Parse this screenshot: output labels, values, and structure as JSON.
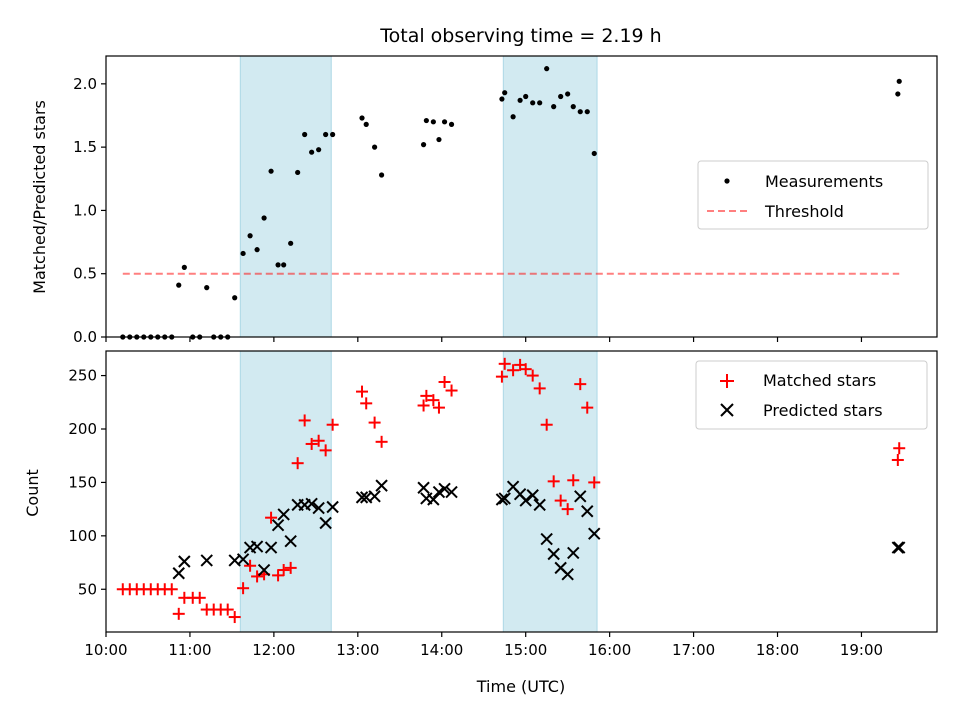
{
  "title": "Total observing time = 2.19 h",
  "colors": {
    "span": "#add8e6",
    "measurement": "#000000",
    "threshold": "#ff0000",
    "matched": "#ff0000",
    "predicted": "#000000"
  },
  "chart_data": [
    {
      "type": "scatter",
      "ylabel": "Matched/Predicted stars",
      "xlim": [
        "10:00",
        "19:54"
      ],
      "ylim": [
        0,
        2.22
      ],
      "yticks": [
        "0.0",
        "0.5",
        "1.0",
        "1.5",
        "2.0"
      ],
      "shaded_spans": [
        [
          "11:36",
          "12:41"
        ],
        [
          "14:44",
          "15:51"
        ]
      ],
      "legend_position": "center right",
      "series": [
        {
          "name": "Measurements",
          "kind": "scatter",
          "points": [
            [
              "10:12",
              0.0
            ],
            [
              "10:17",
              0.0
            ],
            [
              "10:22",
              0.0
            ],
            [
              "10:27",
              0.0
            ],
            [
              "10:32",
              0.0
            ],
            [
              "10:37",
              0.0
            ],
            [
              "10:42",
              0.0
            ],
            [
              "10:47",
              0.0
            ],
            [
              "10:52",
              0.41
            ],
            [
              "10:56",
              0.55
            ],
            [
              "11:02",
              0.0
            ],
            [
              "11:07",
              0.0
            ],
            [
              "11:12",
              0.39
            ],
            [
              "11:17",
              0.0
            ],
            [
              "11:22",
              0.0
            ],
            [
              "11:27",
              0.0
            ],
            [
              "11:32",
              0.31
            ],
            [
              "11:38",
              0.66
            ],
            [
              "11:43",
              0.8
            ],
            [
              "11:48",
              0.69
            ],
            [
              "11:53",
              0.94
            ],
            [
              "11:58",
              1.31
            ],
            [
              "12:03",
              0.57
            ],
            [
              "12:07",
              0.57
            ],
            [
              "12:12",
              0.74
            ],
            [
              "12:17",
              1.3
            ],
            [
              "12:22",
              1.6
            ],
            [
              "12:27",
              1.46
            ],
            [
              "12:32",
              1.48
            ],
            [
              "12:37",
              1.6
            ],
            [
              "12:42",
              1.6
            ],
            [
              "13:03",
              1.73
            ],
            [
              "13:06",
              1.68
            ],
            [
              "13:12",
              1.5
            ],
            [
              "13:17",
              1.28
            ],
            [
              "13:47",
              1.52
            ],
            [
              "13:49",
              1.71
            ],
            [
              "13:54",
              1.7
            ],
            [
              "13:58",
              1.56
            ],
            [
              "14:02",
              1.7
            ],
            [
              "14:07",
              1.68
            ],
            [
              "14:43",
              1.88
            ],
            [
              "14:45",
              1.93
            ],
            [
              "14:51",
              1.74
            ],
            [
              "14:56",
              1.87
            ],
            [
              "15:00",
              1.9
            ],
            [
              "15:05",
              1.85
            ],
            [
              "15:10",
              1.85
            ],
            [
              "15:15",
              2.12
            ],
            [
              "15:20",
              1.82
            ],
            [
              "15:25",
              1.9
            ],
            [
              "15:30",
              1.92
            ],
            [
              "15:34",
              1.82
            ],
            [
              "15:39",
              1.78
            ],
            [
              "15:44",
              1.78
            ],
            [
              "15:49",
              1.45
            ],
            [
              "19:26",
              1.92
            ],
            [
              "19:27",
              2.02
            ]
          ]
        },
        {
          "name": "Threshold",
          "kind": "dashed-line",
          "points": [
            [
              "10:12",
              0.5
            ],
            [
              "19:27",
              0.5
            ]
          ]
        }
      ]
    },
    {
      "type": "scatter",
      "xlabel": "Time (UTC)",
      "ylabel": "Count",
      "xlim": [
        "10:00",
        "19:54"
      ],
      "ylim": [
        10,
        273
      ],
      "yticks": [
        "50",
        "100",
        "150",
        "200",
        "250"
      ],
      "xticks": [
        "10:00",
        "11:00",
        "12:00",
        "13:00",
        "14:00",
        "15:00",
        "16:00",
        "17:00",
        "18:00",
        "19:00"
      ],
      "shaded_spans": [
        [
          "11:36",
          "12:41"
        ],
        [
          "14:44",
          "15:51"
        ]
      ],
      "legend_position": "upper right",
      "series": [
        {
          "name": "Matched stars",
          "marker": "plus",
          "points": [
            [
              "10:12",
              50
            ],
            [
              "10:17",
              50
            ],
            [
              "10:22",
              50
            ],
            [
              "10:27",
              50
            ],
            [
              "10:32",
              50
            ],
            [
              "10:37",
              50
            ],
            [
              "10:42",
              50
            ],
            [
              "10:47",
              50
            ],
            [
              "10:52",
              27
            ],
            [
              "10:56",
              42
            ],
            [
              "11:02",
              42
            ],
            [
              "11:07",
              42
            ],
            [
              "11:12",
              31
            ],
            [
              "11:17",
              31
            ],
            [
              "11:22",
              31
            ],
            [
              "11:27",
              31
            ],
            [
              "11:32",
              24
            ],
            [
              "11:38",
              51
            ],
            [
              "11:43",
              72
            ],
            [
              "11:48",
              62
            ],
            [
              "11:53",
              64
            ],
            [
              "11:58",
              117
            ],
            [
              "12:03",
              63
            ],
            [
              "12:07",
              68
            ],
            [
              "12:12",
              70
            ],
            [
              "12:17",
              168
            ],
            [
              "12:22",
              208
            ],
            [
              "12:27",
              186
            ],
            [
              "12:32",
              189
            ],
            [
              "12:37",
              180
            ],
            [
              "12:42",
              204
            ],
            [
              "13:03",
              235
            ],
            [
              "13:06",
              224
            ],
            [
              "13:12",
              206
            ],
            [
              "13:17",
              188
            ],
            [
              "13:47",
              222
            ],
            [
              "13:49",
              231
            ],
            [
              "13:54",
              227
            ],
            [
              "13:58",
              220
            ],
            [
              "14:02",
              244
            ],
            [
              "14:07",
              236
            ],
            [
              "14:43",
              249
            ],
            [
              "14:45",
              261
            ],
            [
              "14:51",
              255
            ],
            [
              "14:56",
              260
            ],
            [
              "15:00",
              256
            ],
            [
              "15:05",
              250
            ],
            [
              "15:10",
              238
            ],
            [
              "15:15",
              204
            ],
            [
              "15:20",
              151
            ],
            [
              "15:25",
              133
            ],
            [
              "15:30",
              125
            ],
            [
              "15:34",
              152
            ],
            [
              "15:39",
              242
            ],
            [
              "15:44",
              220
            ],
            [
              "15:49",
              150
            ],
            [
              "19:26",
              171
            ],
            [
              "19:27",
              182
            ]
          ]
        },
        {
          "name": "Predicted stars",
          "marker": "x",
          "points": [
            [
              "10:52",
              65
            ],
            [
              "10:56",
              76
            ],
            [
              "11:12",
              77
            ],
            [
              "11:32",
              77
            ],
            [
              "11:38",
              78
            ],
            [
              "11:43",
              89
            ],
            [
              "11:48",
              90
            ],
            [
              "11:53",
              68
            ],
            [
              "11:58",
              89
            ],
            [
              "12:03",
              110
            ],
            [
              "12:07",
              120
            ],
            [
              "12:12",
              95
            ],
            [
              "12:17",
              129
            ],
            [
              "12:22",
              129
            ],
            [
              "12:27",
              130
            ],
            [
              "12:32",
              126
            ],
            [
              "12:37",
              112
            ],
            [
              "12:42",
              127
            ],
            [
              "13:03",
              136
            ],
            [
              "13:06",
              136
            ],
            [
              "13:12",
              137
            ],
            [
              "13:17",
              147
            ],
            [
              "13:47",
              145
            ],
            [
              "13:49",
              135
            ],
            [
              "13:54",
              134
            ],
            [
              "13:58",
              141
            ],
            [
              "14:02",
              144
            ],
            [
              "14:07",
              141
            ],
            [
              "14:43",
              134
            ],
            [
              "14:45",
              135
            ],
            [
              "14:51",
              146
            ],
            [
              "14:56",
              139
            ],
            [
              "15:00",
              133
            ],
            [
              "15:05",
              138
            ],
            [
              "15:10",
              129
            ],
            [
              "15:15",
              97
            ],
            [
              "15:20",
              83
            ],
            [
              "15:25",
              70
            ],
            [
              "15:30",
              64
            ],
            [
              "15:34",
              84
            ],
            [
              "15:39",
              137
            ],
            [
              "15:44",
              123
            ],
            [
              "15:49",
              102
            ],
            [
              "19:26",
              89
            ],
            [
              "19:27",
              89
            ]
          ]
        }
      ]
    }
  ]
}
